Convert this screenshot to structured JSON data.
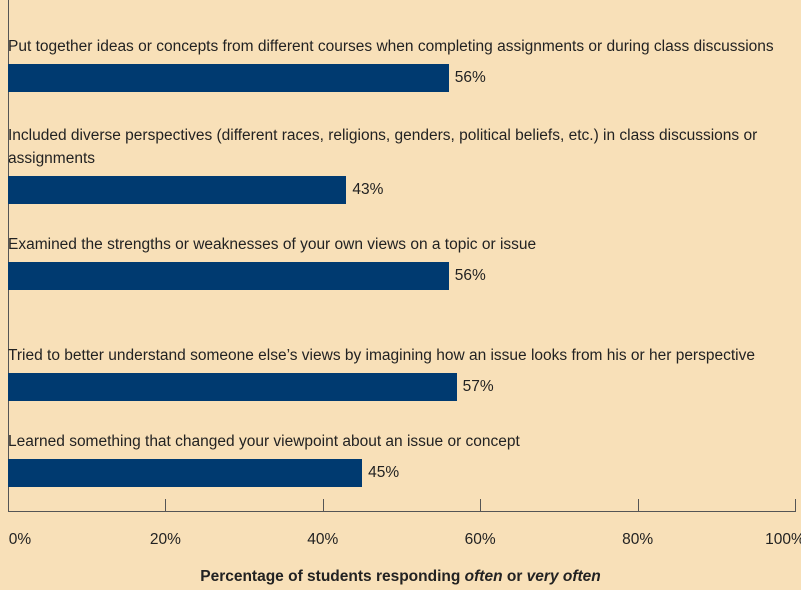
{
  "chart_data": {
    "type": "bar",
    "orientation": "horizontal",
    "categories": [
      "Put together ideas or concepts from different courses when completing assignments or during class discussions",
      "Included diverse perspectives (different races, religions, genders, political beliefs, etc.) in class discussions or assignments",
      "Examined the strengths or weaknesses of your own views on a topic or issue",
      "Tried to better understand someone else’s views by imagining how an issue looks from his or her perspective",
      "Learned something that changed your viewpoint about an issue or concept"
    ],
    "values": [
      56,
      43,
      56,
      57,
      45
    ],
    "value_labels": [
      "56%",
      "43%",
      "56%",
      "57%",
      "45%"
    ],
    "color": "#003a70",
    "xlim": [
      0,
      100
    ],
    "xticks": [
      {
        "value": 0,
        "label": "0%"
      },
      {
        "value": 20,
        "label": "20%"
      },
      {
        "value": 40,
        "label": "40%"
      },
      {
        "value": 60,
        "label": "60%"
      },
      {
        "value": 80,
        "label": "80%"
      },
      {
        "value": 100,
        "label": "100%"
      }
    ],
    "xlabel": [
      "Percentage of students responding",
      "often",
      "or",
      "very often"
    ]
  }
}
